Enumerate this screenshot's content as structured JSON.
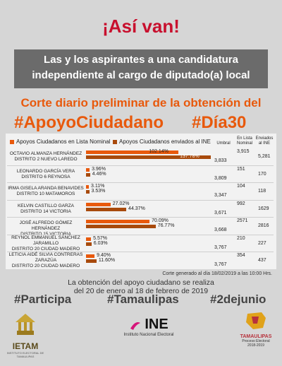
{
  "header": {
    "title": "¡Así van!",
    "subtitle_line1": "Las y los aspirantes a una candidatura",
    "subtitle_line2": "independiente  al cargo de diputado(a) local",
    "corte": "Corte diario preliminar de la obtención del",
    "hashtag_left": "#ApoyoCiudadano",
    "hashtag_right": "#Día30"
  },
  "colors": {
    "lista_nominal": "#e8590c",
    "enviados": "#a84a0c",
    "accent": "#c8102e"
  },
  "chart_data": {
    "type": "bar",
    "legend": [
      "Apoyos Ciudadanos en Lista Nominal",
      "Apoyos Ciudadanos enviados al INE"
    ],
    "columns": {
      "umbral": "Umbral",
      "en_lista": "En Lista Nominal",
      "enviados": "Enviados al INE"
    },
    "categories": [
      [
        "OCTAVIO ALMANZA HERNÁNDEZ",
        "DISTRITO 2 NUEVO LAREDO"
      ],
      [
        "LEONARDO GARCÍA VERA",
        "DISTRITO 6 REYNOSA"
      ],
      [
        "IRMA GISELA ARANDA BENAVIDES",
        "DISTRITO 10 MATAMOROS"
      ],
      [
        "KELVIN CASTILLO GARZA",
        "DISTRITO 14 VICTORIA"
      ],
      [
        "JOSÉ ALFREDO GÓMEZ HERNÁNDEZ",
        "DISTRITO 15 VICTORIA"
      ],
      [
        "REYNOL EMMANUEL SÁNCHEZ",
        "JARAMILLO",
        "DISTRITO 20 CIUDAD MADERO"
      ],
      [
        "LETICIA AIDÉ SILVIA CONTRERAS",
        "ZARAZÚA",
        "DISTRITO 20 CIUDAD MADERO"
      ]
    ],
    "series": [
      {
        "name": "Apoyos Ciudadanos en Lista Nominal",
        "values": [
          102.14,
          3.96,
          3.11,
          27.02,
          70.09,
          5.57,
          9.4
        ]
      },
      {
        "name": "Apoyos Ciudadanos enviados al INE",
        "values": [
          137.78,
          4.46,
          3.53,
          44.37,
          76.77,
          6.03,
          11.6
        ]
      }
    ],
    "labels_a": [
      "102.14%",
      "3.96%",
      "3.11%",
      "27.02%",
      "70.09%",
      "5.57%",
      "9.40%"
    ],
    "labels_b": [
      "137.78%",
      "4.46%",
      "3.53%",
      "44.37%",
      "76.77%",
      "6.03%",
      "11.60%"
    ],
    "umbral": [
      "3,833",
      "3,809",
      "3,347",
      "3,671",
      "3,668",
      "3,767",
      "3,767"
    ],
    "en_lista": [
      "3,915",
      "151",
      "104",
      "992",
      "2571",
      "210",
      "354"
    ],
    "enviados": [
      "5,281",
      "170",
      "118",
      "1629",
      "2816",
      "227",
      "437"
    ],
    "xlim": [
      0,
      140
    ]
  },
  "footer": {
    "corte_note": "Corte generado al día 18/02/2019 a las 10:00 Hrs.",
    "info_line1": "La obtención del apoyo ciudadano se realiza",
    "info_line2": "del 20 de enero al 18 de febrero de 2019",
    "tag1": "#Participa",
    "tag2": "#Tamaulipas",
    "tag3": "#2dejunio",
    "ietam": "IETAM",
    "ietam_sub": "INSTITUTO ELECTORAL DE TAMAULIPAS",
    "ine": "INE",
    "ine_sub": "Instituto Nacional Electoral",
    "tam": "TAMAULIPAS",
    "tam_sub1": "Proceso Electoral",
    "tam_sub2": "2018-2019"
  }
}
